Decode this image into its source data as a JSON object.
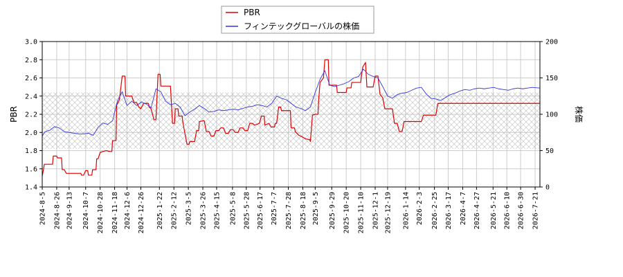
{
  "chart_data": {
    "type": "line",
    "title": "",
    "legend": {
      "placement": "top-center",
      "entries": [
        {
          "name": "PBR",
          "color": "#dd0000"
        },
        {
          "name": "フィンテックグローバルの株価",
          "color": "#3333dd"
        }
      ]
    },
    "xlabel": "",
    "ylabel_left": "PBR",
    "ylabel_right": "株価",
    "ylim_left": [
      1.4,
      3.0
    ],
    "ylim_right": [
      0,
      200
    ],
    "yticks_left": [
      "1.4",
      "1.6",
      "1.8",
      "2.0",
      "2.2",
      "2.4",
      "2.6",
      "2.8",
      "3.0"
    ],
    "yticks_right": [
      "0",
      "50",
      "100",
      "150",
      "200"
    ],
    "x_start": "2024-08-05",
    "x_end": "2026-07-28",
    "xticks": [
      "2024-8-5",
      "2024-8-26",
      "2024-9-13",
      "2024-10-7",
      "2024-10-28",
      "2024-11-18",
      "2024-12-6",
      "2024-12-26",
      "2025-1-22",
      "2025-2-12",
      "2025-3-5",
      "2025-3-26",
      "2025-4-15",
      "2025-5-8",
      "2025-5-28",
      "2025-6-17",
      "2025-7-7",
      "2025-7-28",
      "2025-8-18",
      "2025-9-5",
      "2025-9-29",
      "2025-10-20",
      "2025-11-10",
      "2025-12-1",
      "2025-12-19",
      "2026-1-14",
      "2026-2-3",
      "2026-2-25",
      "2026-3-17",
      "2026-4-7",
      "2026-4-27",
      "2026-5-21",
      "2026-6-10",
      "2026-6-30",
      "2026-7-21"
    ],
    "grid": true,
    "hatched_band_left": [
      1.82,
      2.44
    ],
    "series": [
      {
        "name": "PBR",
        "axis": "left",
        "color": "#dd0000",
        "step": true,
        "points": [
          [
            "2024-08-05",
            1.52
          ],
          [
            "2024-08-07",
            1.6
          ],
          [
            "2024-08-08",
            1.65
          ],
          [
            "2024-08-20",
            1.65
          ],
          [
            "2024-08-21",
            1.74
          ],
          [
            "2024-08-26",
            1.74
          ],
          [
            "2024-08-27",
            1.72
          ],
          [
            "2024-09-02",
            1.72
          ],
          [
            "2024-09-03",
            1.59
          ],
          [
            "2024-09-06",
            1.59
          ],
          [
            "2024-09-09",
            1.55
          ],
          [
            "2024-09-30",
            1.55
          ],
          [
            "2024-10-01",
            1.53
          ],
          [
            "2024-10-04",
            1.53
          ],
          [
            "2024-10-07",
            1.58
          ],
          [
            "2024-10-10",
            1.58
          ],
          [
            "2024-10-11",
            1.53
          ],
          [
            "2024-10-16",
            1.53
          ],
          [
            "2024-10-17",
            1.59
          ],
          [
            "2024-10-22",
            1.59
          ],
          [
            "2024-10-23",
            1.71
          ],
          [
            "2024-10-25",
            1.71
          ],
          [
            "2024-10-28",
            1.78
          ],
          [
            "2024-11-01",
            1.79
          ],
          [
            "2024-11-06",
            1.8
          ],
          [
            "2024-11-11",
            1.79
          ],
          [
            "2024-11-14",
            1.79
          ],
          [
            "2024-11-15",
            1.91
          ],
          [
            "2024-11-20",
            1.91
          ],
          [
            "2024-11-21",
            2.3
          ],
          [
            "2024-11-25",
            2.36
          ],
          [
            "2024-11-29",
            2.62
          ],
          [
            "2024-12-03",
            2.62
          ],
          [
            "2024-12-04",
            2.4
          ],
          [
            "2024-12-13",
            2.4
          ],
          [
            "2024-12-16",
            2.33
          ],
          [
            "2024-12-20",
            2.33
          ],
          [
            "2024-12-23",
            2.28
          ],
          [
            "2024-12-26",
            2.26
          ],
          [
            "2024-12-30",
            2.32
          ],
          [
            "2025-01-06",
            2.32
          ],
          [
            "2025-01-07",
            2.28
          ],
          [
            "2025-01-10",
            2.26
          ],
          [
            "2025-01-14",
            2.14
          ],
          [
            "2025-01-17",
            2.14
          ],
          [
            "2025-01-20",
            2.64
          ],
          [
            "2025-01-23",
            2.64
          ],
          [
            "2025-01-24",
            2.51
          ],
          [
            "2025-02-07",
            2.51
          ],
          [
            "2025-02-10",
            2.1
          ],
          [
            "2025-02-13",
            2.1
          ],
          [
            "2025-02-14",
            2.26
          ],
          [
            "2025-02-18",
            2.26
          ],
          [
            "2025-02-19",
            2.18
          ],
          [
            "2025-02-24",
            2.18
          ],
          [
            "2025-02-25",
            2.11
          ],
          [
            "2025-03-03",
            1.87
          ],
          [
            "2025-03-06",
            1.87
          ],
          [
            "2025-03-07",
            1.9
          ],
          [
            "2025-03-14",
            1.9
          ],
          [
            "2025-03-17",
            2.02
          ],
          [
            "2025-03-20",
            2.02
          ],
          [
            "2025-03-21",
            2.12
          ],
          [
            "2025-03-28",
            2.13
          ],
          [
            "2025-03-31",
            2.01
          ],
          [
            "2025-04-04",
            2.01
          ],
          [
            "2025-04-07",
            1.96
          ],
          [
            "2025-04-11",
            1.96
          ],
          [
            "2025-04-14",
            2.02
          ],
          [
            "2025-04-18",
            2.02
          ],
          [
            "2025-04-21",
            2.05
          ],
          [
            "2025-04-25",
            2.05
          ],
          [
            "2025-04-28",
            1.99
          ],
          [
            "2025-05-02",
            1.99
          ],
          [
            "2025-05-05",
            2.03
          ],
          [
            "2025-05-09",
            2.03
          ],
          [
            "2025-05-12",
            2.0
          ],
          [
            "2025-05-16",
            2.0
          ],
          [
            "2025-05-19",
            2.05
          ],
          [
            "2025-05-23",
            2.05
          ],
          [
            "2025-05-26",
            2.02
          ],
          [
            "2025-05-30",
            2.02
          ],
          [
            "2025-06-02",
            2.1
          ],
          [
            "2025-06-06",
            2.1
          ],
          [
            "2025-06-09",
            2.08
          ],
          [
            "2025-06-16",
            2.1
          ],
          [
            "2025-06-19",
            2.18
          ],
          [
            "2025-06-23",
            2.18
          ],
          [
            "2025-06-24",
            2.08
          ],
          [
            "2025-06-27",
            2.09
          ],
          [
            "2025-06-30",
            2.1
          ],
          [
            "2025-07-03",
            2.06
          ],
          [
            "2025-07-08",
            2.06
          ],
          [
            "2025-07-09",
            2.1
          ],
          [
            "2025-07-11",
            2.1
          ],
          [
            "2025-07-14",
            2.28
          ],
          [
            "2025-07-17",
            2.28
          ],
          [
            "2025-07-18",
            2.24
          ],
          [
            "2025-07-31",
            2.24
          ],
          [
            "2025-08-01",
            2.05
          ],
          [
            "2025-08-06",
            2.05
          ],
          [
            "2025-08-07",
            2.01
          ],
          [
            "2025-08-12",
            1.97
          ],
          [
            "2025-08-15",
            1.96
          ],
          [
            "2025-08-22",
            1.93
          ],
          [
            "2025-08-28",
            1.92
          ],
          [
            "2025-08-29",
            1.9
          ],
          [
            "2025-09-01",
            2.19
          ],
          [
            "2025-09-05",
            2.2
          ],
          [
            "2025-09-09",
            2.2
          ],
          [
            "2025-09-10",
            2.35
          ],
          [
            "2025-09-12",
            2.55
          ],
          [
            "2025-09-17",
            2.6
          ],
          [
            "2025-09-19",
            2.8
          ],
          [
            "2025-09-24",
            2.8
          ],
          [
            "2025-09-25",
            2.52
          ],
          [
            "2025-10-06",
            2.52
          ],
          [
            "2025-10-07",
            2.44
          ],
          [
            "2025-10-20",
            2.44
          ],
          [
            "2025-10-21",
            2.49
          ],
          [
            "2025-10-27",
            2.49
          ],
          [
            "2025-10-28",
            2.55
          ],
          [
            "2025-11-10",
            2.55
          ],
          [
            "2025-11-11",
            2.62
          ],
          [
            "2025-11-13",
            2.72
          ],
          [
            "2025-11-17",
            2.77
          ],
          [
            "2025-11-19",
            2.5
          ],
          [
            "2025-11-28",
            2.5
          ],
          [
            "2025-12-01",
            2.62
          ],
          [
            "2025-12-05",
            2.62
          ],
          [
            "2025-12-08",
            2.42
          ],
          [
            "2025-12-12",
            2.38
          ],
          [
            "2025-12-15",
            2.26
          ],
          [
            "2025-12-26",
            2.26
          ],
          [
            "2025-12-29",
            2.1
          ],
          [
            "2026-01-02",
            2.1
          ],
          [
            "2026-01-05",
            2.01
          ],
          [
            "2026-01-09",
            2.01
          ],
          [
            "2026-01-12",
            2.12
          ],
          [
            "2026-02-06",
            2.12
          ],
          [
            "2026-02-09",
            2.19
          ],
          [
            "2026-02-27",
            2.19
          ],
          [
            "2026-03-02",
            2.32
          ],
          [
            "2026-07-28",
            2.32
          ]
        ]
      },
      {
        "name": "フィンテックグローバルの株価",
        "axis": "right",
        "color": "#3333dd",
        "step": false,
        "points": [
          [
            "2024-08-05",
            70
          ],
          [
            "2024-08-09",
            76
          ],
          [
            "2024-08-16",
            78
          ],
          [
            "2024-08-23",
            83
          ],
          [
            "2024-08-30",
            81
          ],
          [
            "2024-09-06",
            76
          ],
          [
            "2024-09-13",
            75
          ],
          [
            "2024-09-20",
            74
          ],
          [
            "2024-09-27",
            73
          ],
          [
            "2024-10-04",
            73
          ],
          [
            "2024-10-11",
            74
          ],
          [
            "2024-10-18",
            71
          ],
          [
            "2024-10-25",
            82
          ],
          [
            "2024-11-01",
            88
          ],
          [
            "2024-11-08",
            86
          ],
          [
            "2024-11-15",
            91
          ],
          [
            "2024-11-22",
            118
          ],
          [
            "2024-11-29",
            131
          ],
          [
            "2024-12-06",
            112
          ],
          [
            "2024-12-13",
            118
          ],
          [
            "2024-12-20",
            112
          ],
          [
            "2024-12-27",
            117
          ],
          [
            "2025-01-03",
            114
          ],
          [
            "2025-01-10",
            109
          ],
          [
            "2025-01-17",
            135
          ],
          [
            "2025-01-24",
            131
          ],
          [
            "2025-01-31",
            118
          ],
          [
            "2025-02-07",
            113
          ],
          [
            "2025-02-14",
            115
          ],
          [
            "2025-02-21",
            110
          ],
          [
            "2025-02-28",
            98
          ],
          [
            "2025-03-07",
            103
          ],
          [
            "2025-03-14",
            107
          ],
          [
            "2025-03-21",
            112
          ],
          [
            "2025-03-28",
            108
          ],
          [
            "2025-04-04",
            103
          ],
          [
            "2025-04-11",
            104
          ],
          [
            "2025-04-18",
            106
          ],
          [
            "2025-04-25",
            105
          ],
          [
            "2025-05-02",
            106
          ],
          [
            "2025-05-09",
            107
          ],
          [
            "2025-05-16",
            106
          ],
          [
            "2025-05-23",
            108
          ],
          [
            "2025-05-30",
            110
          ],
          [
            "2025-06-06",
            111
          ],
          [
            "2025-06-13",
            113
          ],
          [
            "2025-06-20",
            112
          ],
          [
            "2025-06-27",
            110
          ],
          [
            "2025-07-04",
            115
          ],
          [
            "2025-07-11",
            125
          ],
          [
            "2025-07-18",
            122
          ],
          [
            "2025-07-25",
            120
          ],
          [
            "2025-08-01",
            115
          ],
          [
            "2025-08-08",
            110
          ],
          [
            "2025-08-15",
            108
          ],
          [
            "2025-08-22",
            105
          ],
          [
            "2025-08-29",
            110
          ],
          [
            "2025-09-05",
            130
          ],
          [
            "2025-09-12",
            148
          ],
          [
            "2025-09-19",
            160
          ],
          [
            "2025-09-26",
            140
          ],
          [
            "2025-10-03",
            138
          ],
          [
            "2025-10-10",
            140
          ],
          [
            "2025-10-17",
            142
          ],
          [
            "2025-10-24",
            145
          ],
          [
            "2025-10-31",
            150
          ],
          [
            "2025-11-07",
            152
          ],
          [
            "2025-11-14",
            162
          ],
          [
            "2025-11-21",
            155
          ],
          [
            "2025-11-28",
            152
          ],
          [
            "2025-12-05",
            150
          ],
          [
            "2025-12-12",
            138
          ],
          [
            "2025-12-19",
            125
          ],
          [
            "2025-12-26",
            122
          ],
          [
            "2026-01-02",
            127
          ],
          [
            "2026-01-09",
            129
          ],
          [
            "2026-01-16",
            130
          ],
          [
            "2026-01-23",
            133
          ],
          [
            "2026-01-30",
            136
          ],
          [
            "2026-02-06",
            137
          ],
          [
            "2026-02-13",
            128
          ],
          [
            "2026-02-20",
            122
          ],
          [
            "2026-02-27",
            121
          ],
          [
            "2026-03-06",
            119
          ],
          [
            "2026-03-13",
            123
          ],
          [
            "2026-03-20",
            127
          ],
          [
            "2026-03-27",
            129
          ],
          [
            "2026-04-03",
            132
          ],
          [
            "2026-04-10",
            134
          ],
          [
            "2026-04-17",
            133
          ],
          [
            "2026-04-24",
            135
          ],
          [
            "2026-05-01",
            136
          ],
          [
            "2026-05-08",
            135
          ],
          [
            "2026-05-15",
            136
          ],
          [
            "2026-05-22",
            137
          ],
          [
            "2026-05-29",
            135
          ],
          [
            "2026-06-05",
            134
          ],
          [
            "2026-06-12",
            133
          ],
          [
            "2026-06-19",
            135
          ],
          [
            "2026-06-26",
            136
          ],
          [
            "2026-07-03",
            135
          ],
          [
            "2026-07-10",
            136
          ],
          [
            "2026-07-17",
            137
          ],
          [
            "2026-07-28",
            136
          ]
        ]
      }
    ]
  }
}
